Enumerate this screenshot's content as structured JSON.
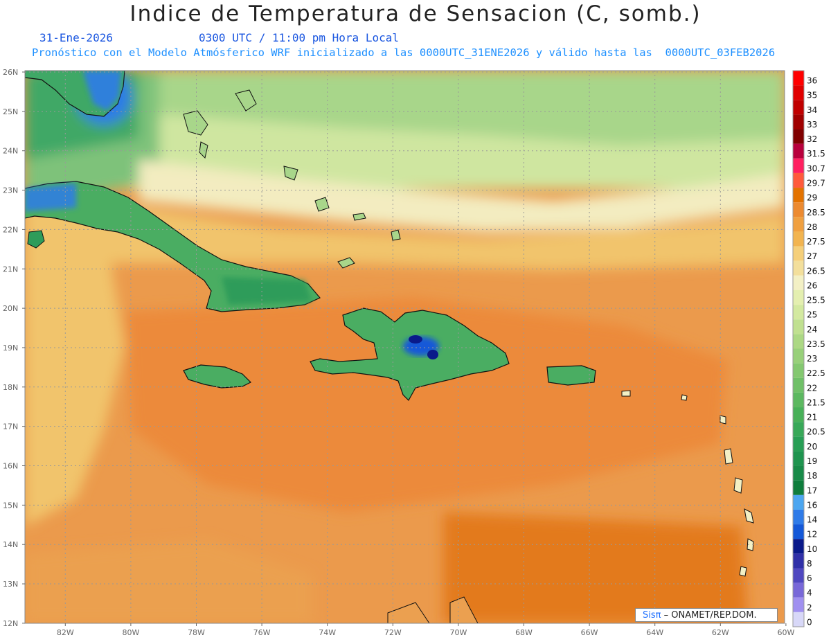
{
  "header": {
    "title": "Indice de Temperatura de Sensacion (C, somb.)",
    "date": "31-Ene-2026",
    "time": "0300 UTC / 11:00 pm Hora Local",
    "forecast_note": "Pronóstico con el Modelo Atmósferico WRF inicializado a las 0000UTC_31ENE2026 y válido hasta las  0000UTC_03FEB2026"
  },
  "map": {
    "lat_range": [
      12,
      26
    ],
    "lon_range": [
      -83,
      -60
    ],
    "lat_ticks": [
      "26N",
      "25N",
      "24N",
      "23N",
      "22N",
      "21N",
      "20N",
      "19N",
      "18N",
      "17N",
      "16N",
      "15N",
      "14N",
      "13N",
      "12N"
    ],
    "lon_ticks": [
      "82W",
      "80W",
      "78W",
      "76W",
      "74W",
      "72W",
      "70W",
      "68W",
      "66W",
      "64W",
      "62W",
      "60W"
    ],
    "background_color": "#e8964a",
    "ocean_warm_color": "#ef8a3c",
    "land_cool_color": "#2e9c5a"
  },
  "colorbar": {
    "labels": [
      "36",
      "35",
      "34",
      "33",
      "32",
      "31.5",
      "30.7",
      "29.7",
      "29",
      "28.5",
      "28",
      "27.5",
      "27",
      "26.5",
      "26",
      "25.5",
      "25",
      "24",
      "23.5",
      "23",
      "22.5",
      "22",
      "21.5",
      "21",
      "20.5",
      "20",
      "19",
      "18",
      "17",
      "16",
      "14",
      "12",
      "10",
      "8",
      "6",
      "4",
      "2",
      "0"
    ],
    "colors": [
      "#ff0000",
      "#e00000",
      "#c00000",
      "#a00000",
      "#800000",
      "#b8003c",
      "#ff2060",
      "#ff5a3c",
      "#e37200",
      "#ec8a30",
      "#f0a040",
      "#f2b450",
      "#f5cf7a",
      "#f3df9c",
      "#f3f0c5",
      "#e4efb0",
      "#d3e9a0",
      "#c0e090",
      "#acd884",
      "#98d07a",
      "#84c870",
      "#70c068",
      "#5cb860",
      "#48b058",
      "#38a858",
      "#289e55",
      "#1f944f",
      "#188a48",
      "#0f7d3c",
      "#4ca6f0",
      "#2f7be8",
      "#1458d8",
      "#0a1a8a",
      "#3030a8",
      "#5048c0",
      "#7868d8",
      "#a090f0",
      "#d8d8f8"
    ]
  },
  "credit": {
    "sis": "Sisπ",
    "org": " – ONAMET/REP.DOM."
  }
}
